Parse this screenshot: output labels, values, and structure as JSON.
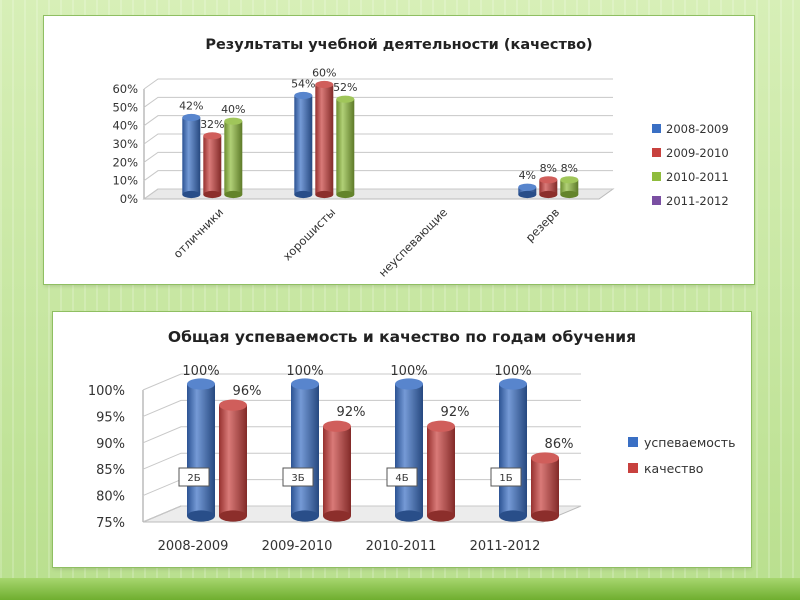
{
  "chart_data": [
    {
      "type": "bar",
      "title": "Результаты учебной деятельности (качество)",
      "categories": [
        "отличники",
        "хорошисты",
        "неуспевающие",
        "резерв"
      ],
      "ylim": [
        0,
        60
      ],
      "y_ticks": [
        "0%",
        "10%",
        "20%",
        "30%",
        "40%",
        "50%",
        "60%"
      ],
      "legend_position": "right",
      "series": [
        {
          "name": "2008-2009",
          "color": "#3a6fc4",
          "values": [
            42,
            54,
            null,
            4
          ],
          "labels": [
            "42%",
            "54%",
            "",
            "4%"
          ]
        },
        {
          "name": "2009-2010",
          "color": "#c8413e",
          "values": [
            32,
            60,
            null,
            8
          ],
          "labels": [
            "32%",
            "60%",
            "",
            "8%"
          ]
        },
        {
          "name": "2010-2011",
          "color": "#8fbc3d",
          "values": [
            40,
            52,
            null,
            8
          ],
          "labels": [
            "40%",
            "52%",
            "",
            "8%"
          ]
        },
        {
          "name": "2011-2012",
          "color": "#7a4fa2",
          "values": [
            null,
            null,
            null,
            null
          ],
          "labels": [
            "",
            "",
            "",
            ""
          ]
        }
      ]
    },
    {
      "type": "bar",
      "title": "Общая успеваемость и качество по годам обучения",
      "categories": [
        "2008-2009",
        "2009-2010",
        "2010-2011",
        "2011-2012"
      ],
      "ylim": [
        75,
        100
      ],
      "y_ticks": [
        "75%",
        "80%",
        "85%",
        "90%",
        "95%",
        "100%"
      ],
      "legend_position": "right",
      "series": [
        {
          "name": "успеваемость",
          "color": "#3a6fc4",
          "values": [
            100,
            100,
            100,
            100
          ],
          "labels": [
            "100%",
            "100%",
            "100%",
            "100%"
          ]
        },
        {
          "name": "качество",
          "color": "#c8413e",
          "values": [
            96,
            92,
            92,
            86
          ],
          "labels": [
            "96%",
            "92%",
            "92%",
            "86%"
          ]
        }
      ],
      "annotations": [
        "2Б",
        "3Б",
        "4Б",
        "1Б"
      ]
    }
  ]
}
